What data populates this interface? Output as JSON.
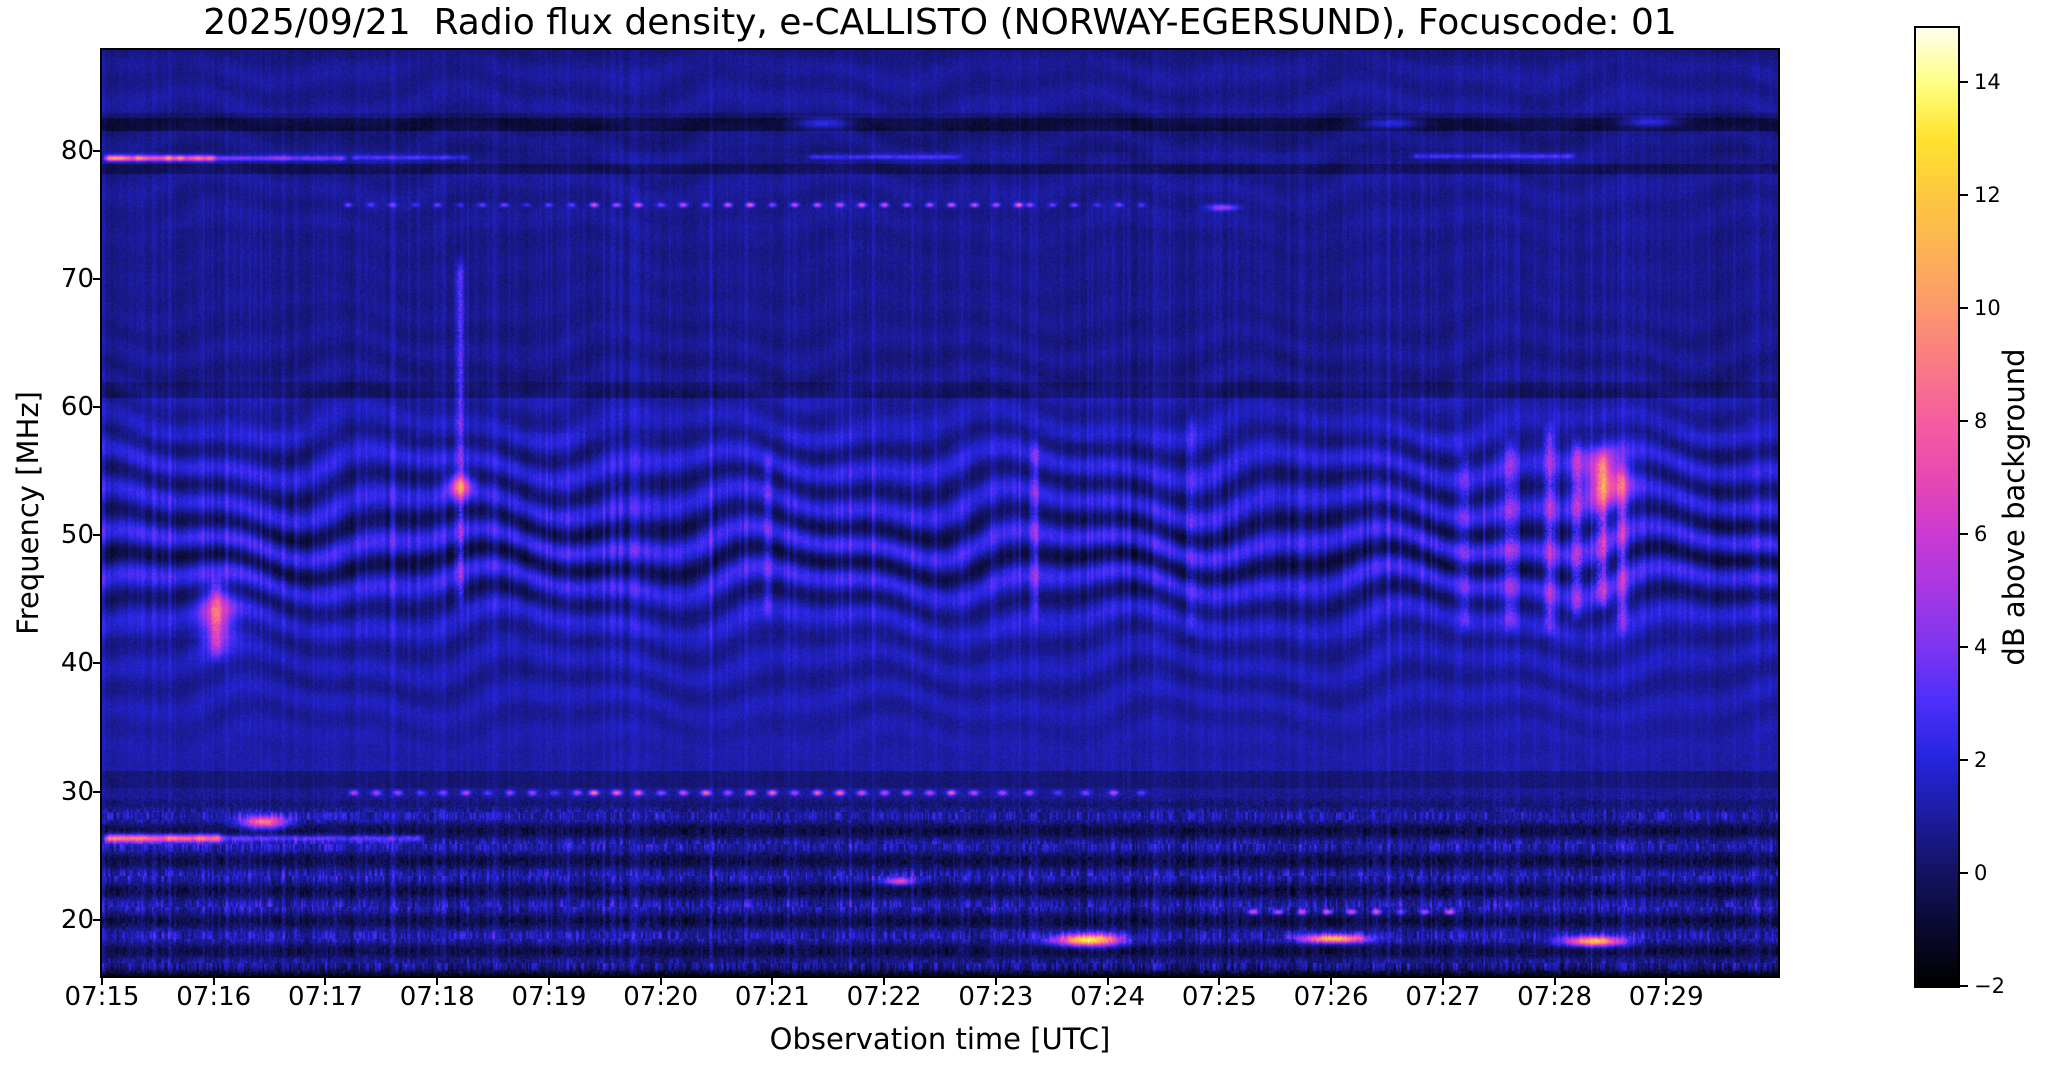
{
  "chart_data": {
    "type": "heatmap",
    "subtype": "radio-spectrogram",
    "title": "2025/09/21  Radio flux density, e-CALLISTO (NORWAY-EGERSUND), Focuscode: 01",
    "xlabel": "Observation time [UTC]",
    "ylabel": "Frequency [MHz]",
    "colorbar_label": "dB above background",
    "x_start": "07:15",
    "x_span_minutes": 15,
    "x_range_minutes": [
      0,
      15
    ],
    "y_range_mhz": [
      15.6,
      87.9
    ],
    "color_range_db": [
      -2,
      14.95
    ],
    "grid": false,
    "legend": "colorbar-right",
    "x_ticks": [
      {
        "label": "07:15",
        "minute": 0
      },
      {
        "label": "07:16",
        "minute": 1
      },
      {
        "label": "07:17",
        "minute": 2
      },
      {
        "label": "07:18",
        "minute": 3
      },
      {
        "label": "07:19",
        "minute": 4
      },
      {
        "label": "07:20",
        "minute": 5
      },
      {
        "label": "07:21",
        "minute": 6
      },
      {
        "label": "07:22",
        "minute": 7
      },
      {
        "label": "07:23",
        "minute": 8
      },
      {
        "label": "07:24",
        "minute": 9
      },
      {
        "label": "07:25",
        "minute": 10
      },
      {
        "label": "07:26",
        "minute": 11
      },
      {
        "label": "07:27",
        "minute": 12
      },
      {
        "label": "07:28",
        "minute": 13
      },
      {
        "label": "07:29",
        "minute": 14
      }
    ],
    "y_ticks": [
      {
        "label": "20",
        "mhz": 20
      },
      {
        "label": "30",
        "mhz": 30
      },
      {
        "label": "40",
        "mhz": 40
      },
      {
        "label": "50",
        "mhz": 50
      },
      {
        "label": "60",
        "mhz": 60
      },
      {
        "label": "70",
        "mhz": 70
      },
      {
        "label": "80",
        "mhz": 80
      }
    ],
    "colorbar_ticks": [
      {
        "label": "14",
        "value": 14
      },
      {
        "label": "12",
        "value": 12
      },
      {
        "label": "10",
        "value": 10
      },
      {
        "label": "8",
        "value": 8
      },
      {
        "label": "6",
        "value": 6
      },
      {
        "label": "4",
        "value": 4
      },
      {
        "label": "2",
        "value": 2
      },
      {
        "label": "0",
        "value": 0
      },
      {
        "label": "−2",
        "value": -2
      }
    ],
    "colormap": {
      "name": "gnuplot2-like",
      "stops": [
        {
          "v": -2.0,
          "c": "#000000"
        },
        {
          "v": -1.0,
          "c": "#09092e"
        },
        {
          "v": 0.0,
          "c": "#131360"
        },
        {
          "v": 1.0,
          "c": "#1c1c9e"
        },
        {
          "v": 2.0,
          "c": "#2525dd"
        },
        {
          "v": 3.0,
          "c": "#4b2ffa"
        },
        {
          "v": 4.0,
          "c": "#7e35f0"
        },
        {
          "v": 5.0,
          "c": "#a737e3"
        },
        {
          "v": 6.0,
          "c": "#cb39d3"
        },
        {
          "v": 7.0,
          "c": "#e749b2"
        },
        {
          "v": 8.0,
          "c": "#f55da0"
        },
        {
          "v": 9.0,
          "c": "#f97a85"
        },
        {
          "v": 10.0,
          "c": "#fb986c"
        },
        {
          "v": 11.0,
          "c": "#fcb254"
        },
        {
          "v": 12.0,
          "c": "#fdc840"
        },
        {
          "v": 13.0,
          "c": "#fee32e"
        },
        {
          "v": 14.0,
          "c": "#feff85"
        },
        {
          "v": 14.95,
          "c": "#fffef0"
        }
      ]
    },
    "background_bands_db": [
      {
        "f0": 83.0,
        "f1": 88.0,
        "db": 0.85
      },
      {
        "f0": 82.6,
        "f1": 83.0,
        "db": 0.3
      },
      {
        "f0": 81.6,
        "f1": 82.6,
        "db": -0.55
      },
      {
        "f0": 79.9,
        "f1": 81.6,
        "db": 0.55
      },
      {
        "f0": 79.0,
        "f1": 79.9,
        "db": 0.8
      },
      {
        "f0": 78.2,
        "f1": 79.0,
        "db": -0.1
      },
      {
        "f0": 74.0,
        "f1": 78.2,
        "db": 0.8
      },
      {
        "f0": 62.0,
        "f1": 74.0,
        "db": 0.7
      },
      {
        "f0": 60.7,
        "f1": 62.0,
        "db": 0.15
      },
      {
        "f0": 58.0,
        "f1": 60.7,
        "db": 1.15
      },
      {
        "f0": 42.0,
        "f1": 58.0,
        "db": 1.35
      },
      {
        "f0": 31.6,
        "f1": 42.0,
        "db": 1.15
      },
      {
        "f0": 30.3,
        "f1": 31.6,
        "db": 0.35
      },
      {
        "f0": 28.6,
        "f1": 30.3,
        "db": 0.8
      },
      {
        "f0": 15.6,
        "f1": 28.6,
        "db": 0.6
      }
    ],
    "features": [
      {
        "kind": "hline",
        "f": 79.45,
        "t0": 0.0,
        "t1": 1.05,
        "db": 8.3,
        "fw": 0.22
      },
      {
        "kind": "hline",
        "f": 79.45,
        "t0": 1.0,
        "t1": 2.2,
        "db": 3.4,
        "fw": 0.2
      },
      {
        "kind": "hline",
        "f": 79.5,
        "t0": 2.2,
        "t1": 3.3,
        "db": 2.2,
        "fw": 0.18
      },
      {
        "kind": "hline",
        "f": 79.55,
        "t0": 6.3,
        "t1": 7.7,
        "db": 2.0,
        "fw": 0.18
      },
      {
        "kind": "hline",
        "f": 79.6,
        "t0": 11.7,
        "t1": 13.2,
        "db": 2.2,
        "fw": 0.18
      },
      {
        "kind": "hline",
        "f": 26.35,
        "t0": 0.0,
        "t1": 1.1,
        "db": 7.6,
        "fw": 0.3
      },
      {
        "kind": "hline",
        "f": 26.35,
        "t0": 1.05,
        "t1": 2.9,
        "db": 2.8,
        "fw": 0.25
      },
      {
        "kind": "dotrow",
        "f": 75.8,
        "t0": 2.2,
        "t1": 4.4,
        "period": 0.2,
        "db": 3.0,
        "fw": 0.17,
        "tw": 0.035
      },
      {
        "kind": "dotrow",
        "f": 75.8,
        "t0": 4.4,
        "t1": 8.3,
        "period": 0.2,
        "db": 5.8,
        "fw": 0.17,
        "tw": 0.035
      },
      {
        "kind": "dotrow",
        "f": 75.8,
        "t0": 8.3,
        "t1": 9.45,
        "period": 0.2,
        "db": 3.5,
        "fw": 0.17,
        "tw": 0.035
      },
      {
        "kind": "dotrow",
        "f": 29.9,
        "t0": 2.25,
        "t1": 4.4,
        "period": 0.2,
        "db": 4.0,
        "fw": 0.2,
        "tw": 0.04
      },
      {
        "kind": "dotrow",
        "f": 29.9,
        "t0": 4.4,
        "t1": 7.8,
        "period": 0.2,
        "db": 6.6,
        "fw": 0.2,
        "tw": 0.04
      },
      {
        "kind": "dotrow",
        "f": 29.9,
        "t0": 7.8,
        "t1": 9.45,
        "period": 0.25,
        "db": 4.2,
        "fw": 0.2,
        "tw": 0.04
      },
      {
        "kind": "dotrow",
        "f": 20.6,
        "t0": 10.3,
        "t1": 12.2,
        "period": 0.22,
        "db": 5.5,
        "fw": 0.2,
        "tw": 0.04
      },
      {
        "kind": "blob",
        "f": 18.4,
        "t0": 8.55,
        "t1": 9.1,
        "db": 12.5,
        "fw": 0.45
      },
      {
        "kind": "blob",
        "f": 18.5,
        "t0": 10.75,
        "t1": 11.3,
        "db": 10.5,
        "fw": 0.33
      },
      {
        "kind": "blob",
        "f": 18.3,
        "t0": 13.1,
        "t1": 13.6,
        "db": 10.8,
        "fw": 0.38
      },
      {
        "kind": "blob",
        "f": 53.9,
        "t0": 3.1,
        "t1": 3.3,
        "db": 6.8,
        "fw": 0.9
      },
      {
        "kind": "blob",
        "f": 54.5,
        "t0": 13.25,
        "t1": 13.65,
        "db": 6.2,
        "fw": 2.0
      },
      {
        "kind": "blob",
        "f": 43.6,
        "t0": 0.88,
        "t1": 1.18,
        "db": 4.6,
        "fw": 2.4
      },
      {
        "kind": "blob",
        "f": 27.6,
        "t0": 1.25,
        "t1": 1.65,
        "db": 8.0,
        "fw": 0.5
      },
      {
        "kind": "blob",
        "f": 23.0,
        "t0": 7.0,
        "t1": 7.25,
        "db": 6.0,
        "fw": 0.3
      },
      {
        "kind": "blob",
        "f": 75.6,
        "t0": 9.9,
        "t1": 10.15,
        "db": 4.5,
        "fw": 0.25
      },
      {
        "kind": "blob",
        "f": 82.2,
        "t0": 6.2,
        "t1": 6.7,
        "db": 3.0,
        "fw": 0.45
      },
      {
        "kind": "blob",
        "f": 82.2,
        "t0": 11.3,
        "t1": 11.8,
        "db": 2.8,
        "fw": 0.4
      },
      {
        "kind": "blob",
        "f": 82.3,
        "t0": 13.6,
        "t1": 14.1,
        "db": 3.0,
        "fw": 0.4
      },
      {
        "kind": "vstreak",
        "t": 3.2,
        "f0": 44,
        "f1": 72,
        "db": 2.6,
        "tw": 0.035
      },
      {
        "kind": "vstreak",
        "t": 1.02,
        "f0": 40,
        "f1": 47,
        "db": 3.0,
        "tw": 0.05
      },
      {
        "kind": "vstreak",
        "t": 5.95,
        "f0": 43,
        "f1": 57,
        "db": 1.8,
        "tw": 0.035
      },
      {
        "kind": "vstreak",
        "t": 8.35,
        "f0": 43,
        "f1": 58,
        "db": 1.9,
        "tw": 0.035
      },
      {
        "kind": "vstreak",
        "t": 9.75,
        "f0": 42,
        "f1": 60,
        "db": 1.8,
        "tw": 0.035
      },
      {
        "kind": "vstreak",
        "t": 12.2,
        "f0": 42,
        "f1": 57,
        "db": 2.0,
        "tw": 0.04
      },
      {
        "kind": "vstreak",
        "t": 12.6,
        "f0": 42,
        "f1": 58,
        "db": 2.6,
        "tw": 0.05
      },
      {
        "kind": "vstreak",
        "t": 12.95,
        "f0": 42,
        "f1": 59,
        "db": 2.9,
        "tw": 0.05
      },
      {
        "kind": "vstreak",
        "t": 13.2,
        "f0": 43,
        "f1": 58,
        "db": 3.1,
        "tw": 0.05
      },
      {
        "kind": "vstreak",
        "t": 13.42,
        "f0": 44,
        "f1": 57,
        "db": 3.4,
        "tw": 0.06
      },
      {
        "kind": "vstreak",
        "t": 13.6,
        "f0": 42,
        "f1": 56,
        "db": 2.8,
        "tw": 0.05
      }
    ],
    "texture": {
      "fringe_center_mhz": 48.5,
      "fringe_spacing_mhz": 3.1,
      "fringe_wave_period_min": 2.7,
      "fringe_amp_db": 1.5,
      "mottle_stripe_period_mhz": 2.35,
      "mottle_cell_min": 0.0135,
      "mottle_cell_mhz": 0.62,
      "noise_db": 0.85,
      "noise_low_db": 1.35
    }
  }
}
